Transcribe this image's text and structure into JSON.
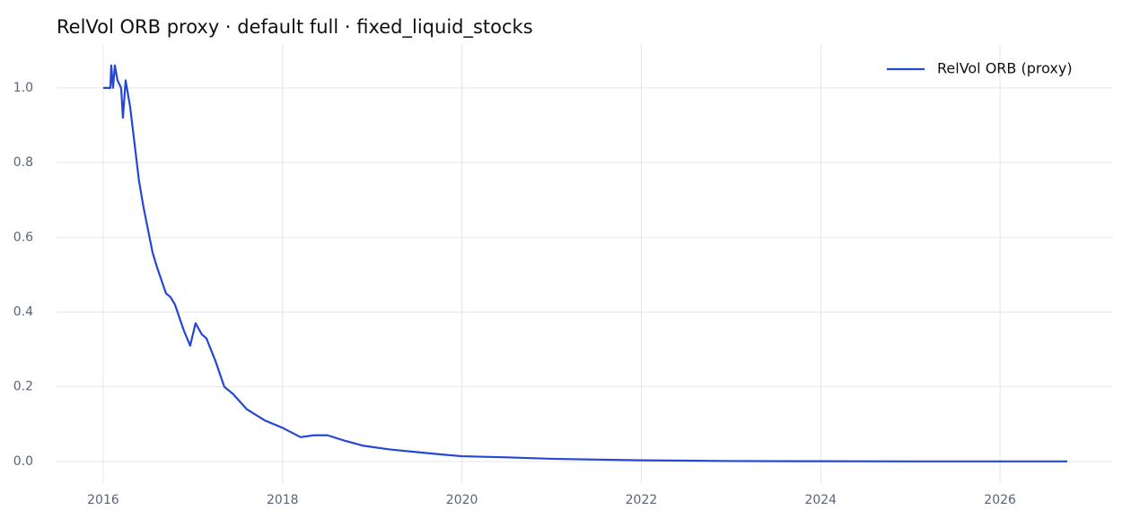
{
  "chart_data": {
    "type": "line",
    "title": "RelVol ORB proxy · default full · fixed_liquid_stocks",
    "x": [
      2016.0,
      2016.08,
      2016.09,
      2016.11,
      2016.13,
      2016.16,
      2016.2,
      2016.22,
      2016.25,
      2016.3,
      2016.35,
      2016.4,
      2016.45,
      2016.5,
      2016.55,
      2016.6,
      2016.7,
      2016.75,
      2016.8,
      2016.9,
      2016.97,
      2017.03,
      2017.1,
      2017.15,
      2017.25,
      2017.35,
      2017.45,
      2017.6,
      2017.8,
      2018.0,
      2018.2,
      2018.35,
      2018.5,
      2018.7,
      2018.9,
      2019.2,
      2019.5,
      2019.8,
      2020.0,
      2020.5,
      2021.0,
      2022.0,
      2023.0,
      2024.0,
      2025.0,
      2026.75
    ],
    "series": [
      {
        "name": "RelVol ORB (proxy)",
        "color": "#2447d4",
        "values": [
          1.0,
          1.0,
          1.06,
          1.0,
          1.06,
          1.02,
          1.0,
          0.92,
          1.02,
          0.95,
          0.85,
          0.75,
          0.68,
          0.62,
          0.56,
          0.52,
          0.45,
          0.44,
          0.42,
          0.35,
          0.31,
          0.37,
          0.34,
          0.33,
          0.27,
          0.2,
          0.18,
          0.14,
          0.11,
          0.09,
          0.065,
          0.07,
          0.07,
          0.055,
          0.042,
          0.032,
          0.025,
          0.018,
          0.014,
          0.011,
          0.007,
          0.003,
          0.001,
          0.0005,
          0.0002,
          0.0001
        ]
      }
    ],
    "xlim": [
      2015.48,
      2027.26
    ],
    "xticks": [
      2016,
      2018,
      2020,
      2022,
      2024,
      2026
    ],
    "ylim": [
      -0.058,
      1.115
    ],
    "yticks": [
      {
        "value": 0,
        "label": "0.0"
      },
      0.2,
      0.4,
      0.6,
      0.8,
      {
        "value": 1,
        "label": "1.0"
      }
    ],
    "grid": true,
    "legend": "upper right"
  }
}
